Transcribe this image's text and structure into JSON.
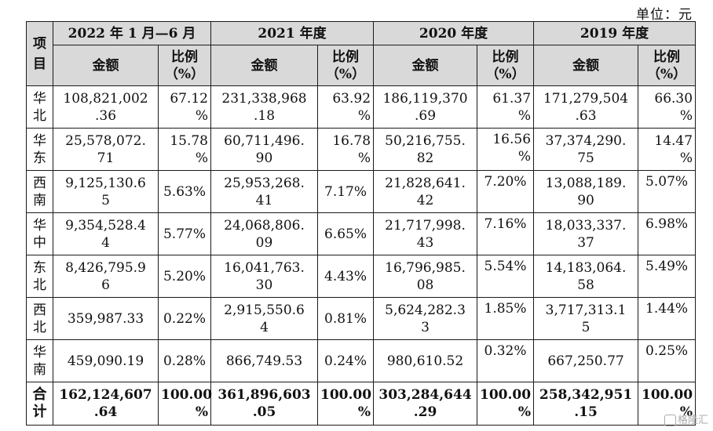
{
  "unit": "单位：元",
  "header": {
    "project": "项\n目",
    "periods": [
      "2022 年 1 月—6 月",
      "2021 年度",
      "2020 年度",
      "2019 年度"
    ],
    "amount_label": "金额",
    "ratio_label": "比例\n（%）"
  },
  "rows": [
    {
      "region": "华\n北",
      "cells": [
        {
          "amount": "108,821,002\n.36",
          "ratio": "67.12\n%"
        },
        {
          "amount": "231,338,968\n.18",
          "ratio": "63.92\n%"
        },
        {
          "amount": "186,119,370\n.69",
          "ratio": "61.37\n%"
        },
        {
          "amount": "171,279,504\n.63",
          "ratio": "66.30\n%"
        }
      ]
    },
    {
      "region": "华\n东",
      "cells": [
        {
          "amount": "25,578,072.\n71",
          "ratio": "15.78\n%"
        },
        {
          "amount": "60,711,496.\n90",
          "ratio": "16.78\n%"
        },
        {
          "amount": "50,216,755.\n82",
          "ratio": "16.56\n%"
        },
        {
          "amount": "37,374,290.\n75",
          "ratio": "14.47\n%"
        }
      ]
    },
    {
      "region": "西\n南",
      "cells": [
        {
          "amount": "9,125,130.6\n5",
          "ratio": "5.63%"
        },
        {
          "amount": "25,953,268.\n41",
          "ratio": "7.17%"
        },
        {
          "amount": "21,828,641.\n42",
          "ratio": "7.20%"
        },
        {
          "amount": "13,088,189.\n90",
          "ratio": "5.07%"
        }
      ]
    },
    {
      "region": "华\n中",
      "cells": [
        {
          "amount": "9,354,528.4\n4",
          "ratio": "5.77%"
        },
        {
          "amount": "24,068,806.\n09",
          "ratio": "6.65%"
        },
        {
          "amount": "21,717,998.\n43",
          "ratio": "7.16%"
        },
        {
          "amount": "18,033,337.\n37",
          "ratio": "6.98%"
        }
      ]
    },
    {
      "region": "东\n北",
      "cells": [
        {
          "amount": "8,426,795.9\n6",
          "ratio": "5.20%"
        },
        {
          "amount": "16,041,763.\n30",
          "ratio": "4.43%"
        },
        {
          "amount": "16,796,985.\n08",
          "ratio": "5.54%"
        },
        {
          "amount": "14,183,064.\n58",
          "ratio": "5.49%"
        }
      ]
    },
    {
      "region": "西\n北",
      "cells": [
        {
          "amount": "359,987.33",
          "ratio": "0.22%"
        },
        {
          "amount": "2,915,550.6\n4",
          "ratio": "0.81%"
        },
        {
          "amount": "5,624,282.3\n3",
          "ratio": "1.85%"
        },
        {
          "amount": "3,717,313.1\n5",
          "ratio": "1.44%"
        }
      ]
    },
    {
      "region": "华\n南",
      "cells": [
        {
          "amount": "459,090.19",
          "ratio": "0.28%"
        },
        {
          "amount": "866,749.53",
          "ratio": "0.24%"
        },
        {
          "amount": "980,610.52",
          "ratio": "0.32%"
        },
        {
          "amount": "667,250.77",
          "ratio": "0.25%"
        }
      ]
    }
  ],
  "total": {
    "region": "合\n计",
    "cells": [
      {
        "amount": "162,124,607\n.64",
        "ratio": "100.00\n%"
      },
      {
        "amount": "361,896,603\n.05",
        "ratio": "100.00\n%"
      },
      {
        "amount": "303,284,644\n.29",
        "ratio": "100.00\n%"
      },
      {
        "amount": "258,342,951\n.15",
        "ratio": "100.00\n%"
      }
    ]
  },
  "watermark": "格隆汇"
}
